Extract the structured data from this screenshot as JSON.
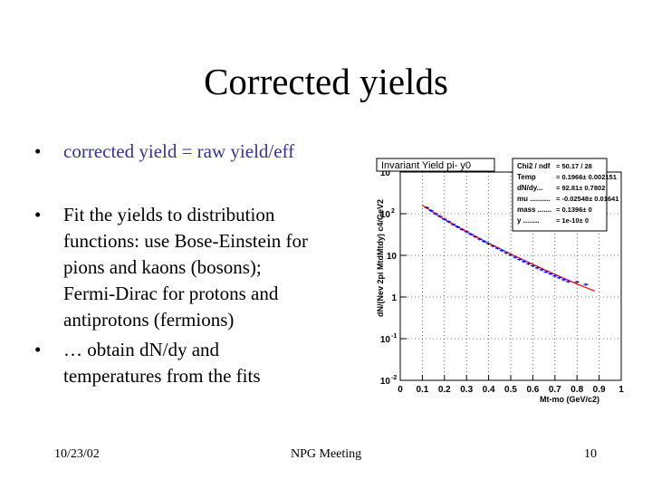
{
  "slide": {
    "title": "Corrected yields",
    "bullets": [
      {
        "text": "corrected yield = raw yield/eff",
        "lines": [
          "corrected yield = raw yield/eff"
        ]
      },
      {
        "text": "Fit the yields to distribution functions: use Bose-Einstein for pions and kaons (bosons); Fermi-Dirac for protons and antiprotons (fermions)",
        "lines": [
          "Fit the yields to distribution",
          "functions: use Bose-Einstein for",
          "pions and kaons (bosons);",
          "Fermi-Dirac for protons and",
          "antiprotons (fermions)"
        ]
      },
      {
        "text": "… obtain dN/dy and temperatures from the fits",
        "lines": [
          "… obtain dN/dy and",
          "temperatures from the fits"
        ]
      }
    ],
    "bullet_symbol": "•",
    "footer": {
      "date": "10/23/02",
      "center": "NPG Meeting",
      "page": "10"
    }
  },
  "chart_data": {
    "type": "scatter",
    "title": "Invariant Yield pi- y0",
    "xlabel": "Mt-mo (GeV/c2)",
    "ylabel": "dN/(Nev 2pi MtdMtdy) c4/GeV2",
    "xlim": [
      0,
      1.0
    ],
    "ylim": [
      0.01,
      1000
    ],
    "yscale": "log",
    "xticks": [
      "0",
      "0.1",
      "0.2",
      "0.3",
      "0.4",
      "0.5",
      "0.6",
      "0.7",
      "0.8",
      "0.9",
      "1"
    ],
    "yticks": [
      {
        "base": "10",
        "exp": "-2",
        "value": 0.01
      },
      {
        "base": "10",
        "exp": "-1",
        "value": 0.1
      },
      {
        "base": "1",
        "exp": "",
        "value": 1
      },
      {
        "base": "10",
        "exp": "",
        "value": 10
      },
      {
        "base": "10",
        "exp": "2",
        "value": 100
      },
      {
        "base": "10",
        "exp": "3",
        "value": 1000
      }
    ],
    "grid": true,
    "stats": [
      {
        "label": "Chi2 / ndf",
        "value": "= 50.17 / 28"
      },
      {
        "label": "Temp",
        "value": "= 0.1966± 0.002151"
      },
      {
        "label": "dN/dy...",
        "value": "= 92.81± 0.7802"
      },
      {
        "label": "mu ..........",
        "value": "= -0.02548± 0.01641"
      },
      {
        "label": "mass .......",
        "value": "= 0.1396± 0"
      },
      {
        "label": "y ........",
        "value": "= 1e-10± 0"
      }
    ],
    "series": [
      {
        "kind": "data",
        "color": "#0000ff",
        "x": [
          0.12,
          0.14,
          0.16,
          0.18,
          0.2,
          0.22,
          0.24,
          0.26,
          0.28,
          0.3,
          0.32,
          0.34,
          0.36,
          0.38,
          0.4,
          0.42,
          0.44,
          0.46,
          0.48,
          0.5,
          0.52,
          0.54,
          0.56,
          0.58,
          0.6,
          0.62,
          0.64,
          0.66,
          0.68,
          0.7,
          0.72,
          0.74,
          0.76,
          0.8,
          0.84
        ],
        "y": [
          140,
          118,
          100,
          86,
          74,
          64,
          55,
          48,
          42,
          37,
          32,
          28,
          24.5,
          21.5,
          19,
          16.8,
          14.8,
          13,
          11.5,
          10.2,
          9.0,
          8.0,
          7.1,
          6.3,
          5.6,
          5.0,
          4.5,
          4.0,
          3.6,
          3.2,
          2.9,
          2.6,
          2.35,
          2.3,
          2.0
        ]
      },
      {
        "kind": "fit",
        "color": "#ff0000",
        "x": [
          0.1,
          0.2,
          0.3,
          0.4,
          0.5,
          0.6,
          0.7,
          0.8,
          0.88
        ],
        "y": [
          160,
          73,
          37,
          19.5,
          10.8,
          6.1,
          3.5,
          2.05,
          1.4
        ]
      }
    ]
  },
  "colors": {
    "accent": "#333399",
    "data": "#0000ff",
    "fit": "#ff0000"
  }
}
